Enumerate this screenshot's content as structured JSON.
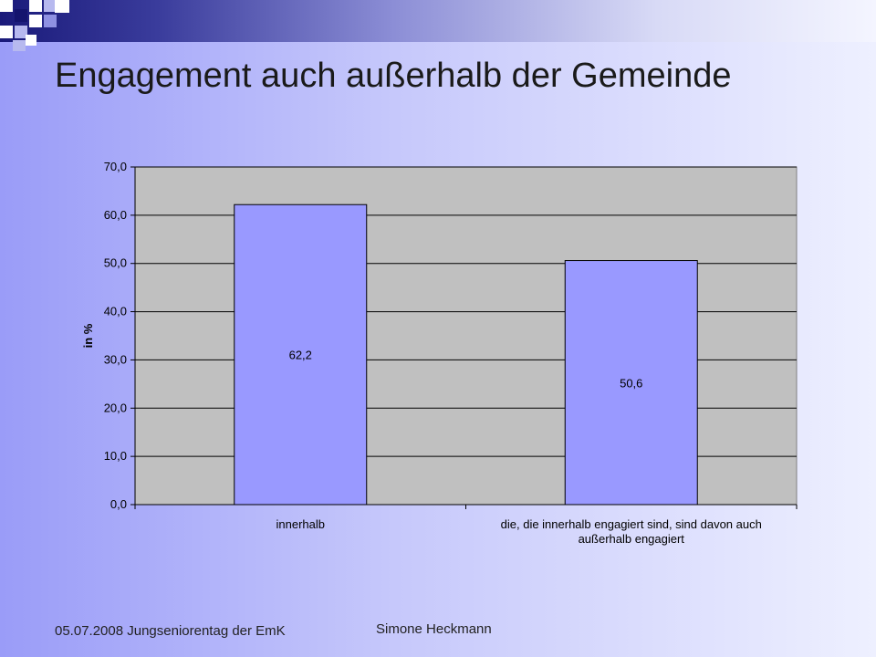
{
  "slide": {
    "title": "Engagement auch außerhalb der Gemeinde",
    "footer_left": "05.07.2008 Jungseniorentag der EmK",
    "footer_center": "Simone Heckmann"
  },
  "colors": {
    "bar": "#9999ff",
    "plot_background": "#c0c0c0"
  },
  "chart_data": {
    "type": "bar",
    "title": "",
    "xlabel": "",
    "ylabel": "in %",
    "categories": [
      [
        "innerhalb"
      ],
      [
        "die, die innerhalb engagiert sind, sind davon auch",
        "außerhalb engagiert"
      ]
    ],
    "values": [
      62.2,
      50.6
    ],
    "value_labels": [
      "62,2",
      "50,6"
    ],
    "ylim": [
      0,
      70
    ],
    "yticks": [
      0,
      10,
      20,
      30,
      40,
      50,
      60,
      70
    ],
    "ytick_labels": [
      "0,0",
      "10,0",
      "20,0",
      "30,0",
      "40,0",
      "50,0",
      "60,0",
      "70,0"
    ],
    "grid": true,
    "legend": "none"
  }
}
